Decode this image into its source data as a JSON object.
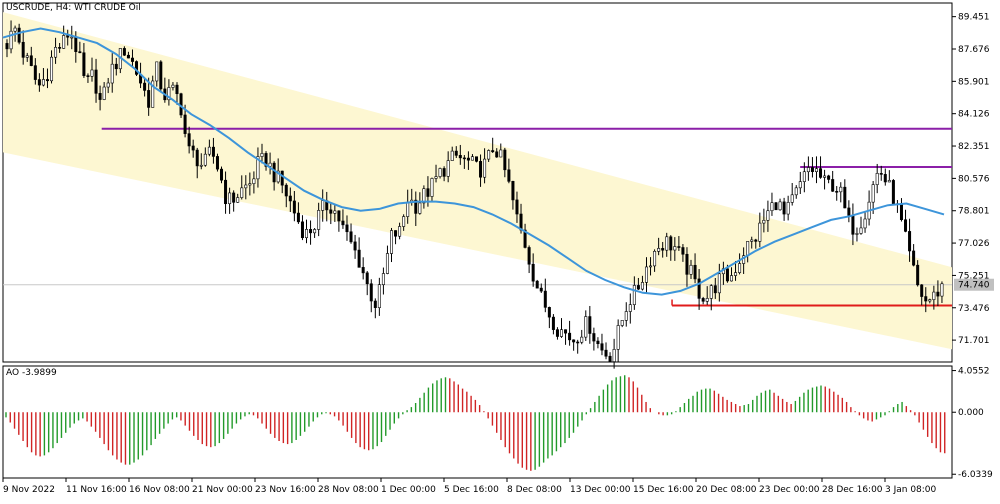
{
  "header": {
    "title": "USCRUDE, H4:  WTI CRUDE Oil"
  },
  "indicator": {
    "label": "AO -3.9899"
  },
  "colors": {
    "background": "#ffffff",
    "channel_fill": "#fdf7d2",
    "ma_line": "#3d95da",
    "resistance": "#8b1fa8",
    "support": "#e01b1b",
    "ao_up": "#229a2a",
    "ao_down": "#d02424",
    "candle": "#000000",
    "grid": "#c8c8c8"
  },
  "chart_data": [
    {
      "type": "candlestick",
      "title": "USCRUDE, H4:  WTI CRUDE Oil",
      "timeframe": "H4",
      "ylim": [
        70.5,
        90.2
      ],
      "yticks": [
        "89.451",
        "87.676",
        "85.901",
        "84.126",
        "82.351",
        "80.576",
        "78.801",
        "77.026",
        "75.251",
        "73.476",
        "71.701"
      ],
      "current_price": "74.740",
      "xticks": [
        "9 Nov 2022",
        "11 Nov 16:00",
        "16 Nov 08:00",
        "21 Nov 00:00",
        "23 Nov 16:00",
        "28 Nov 08:00",
        "1 Dec 00:00",
        "5 Dec 16:00",
        "8 Dec 08:00",
        "13 Dec 00:00",
        "15 Dec 16:00",
        "20 Dec 08:00",
        "23 Dec 00:00",
        "28 Dec 16:00",
        "3 Jan 08:00"
      ],
      "close_path": [
        88.0,
        88.8,
        87.5,
        86.6,
        85.6,
        86.2,
        87.6,
        87.9,
        88.7,
        87.5,
        85.6,
        86.3,
        84.5,
        86.3,
        87.0,
        87.7,
        86.9,
        85.9,
        84.8,
        86.6,
        85.1,
        85.4,
        84.9,
        82.1,
        81.8,
        81.2,
        82.1,
        81.0,
        79.3,
        79.5,
        80.0,
        80.3,
        81.4,
        81.6,
        80.8,
        80.2,
        79.3,
        78.3,
        77.5,
        77.9,
        78.8,
        79.2,
        78.6,
        77.6,
        76.8,
        75.9,
        74.5,
        73.6,
        75.4,
        77.5,
        77.6,
        79.5,
        79.1,
        79.6,
        80.1,
        80.8,
        81.3,
        81.8,
        81.6,
        81.4,
        81.0,
        81.4,
        82.4,
        81.5,
        80.0,
        78.2,
        76.9,
        75.3,
        74.0,
        73.2,
        72.4,
        72.1,
        71.7,
        72.2,
        72.7,
        71.6,
        71.0,
        70.9,
        72.4,
        73.8,
        74.3,
        75.3,
        76.3,
        76.9,
        77.1,
        76.8,
        76.0,
        75.4,
        74.4,
        74.0,
        74.6,
        75.2,
        75.1,
        75.9,
        76.8,
        77.1,
        78.0,
        78.8,
        79.4,
        78.4,
        79.4,
        80.2,
        81.1,
        81.0,
        80.3,
        80.3,
        79.9,
        78.2,
        77.8,
        78.5,
        79.9,
        81.1,
        80.3,
        79.4,
        77.8,
        76.1,
        74.5,
        73.8,
        74.1,
        74.7
      ],
      "channel": {
        "upper": {
          "from": [
            0,
            89.7
          ],
          "to": [
            1,
            75.7
          ]
        },
        "lower": {
          "from": [
            0,
            82.0
          ],
          "to": [
            1,
            71.2
          ]
        }
      },
      "moving_average": [
        88.3,
        88.6,
        88.8,
        88.6,
        88.3,
        88.0,
        87.4,
        86.6,
        85.6,
        84.9,
        84.1,
        83.5,
        82.8,
        82.0,
        81.3,
        80.6,
        79.9,
        79.4,
        79.0,
        78.8,
        78.9,
        79.2,
        79.3,
        79.3,
        79.2,
        79.0,
        78.6,
        78.1,
        77.5,
        76.9,
        76.2,
        75.5,
        75.0,
        74.6,
        74.3,
        74.2,
        74.4,
        74.8,
        75.4,
        76.0,
        76.6,
        77.1,
        77.5,
        77.9,
        78.3,
        78.5,
        78.8,
        79.1,
        79.2,
        78.9,
        78.6
      ],
      "resistance_lines": [
        {
          "price": 83.3,
          "from": 0.104,
          "to": 1.0
        },
        {
          "price": 81.2,
          "from": 0.84,
          "to": 1.0
        }
      ],
      "support_lines": [
        {
          "price": 73.6,
          "from": 0.705,
          "to": 1.0
        }
      ]
    },
    {
      "type": "histogram",
      "title": "AO",
      "value": "-3.9899",
      "ylim": [
        -6.4,
        4.5
      ],
      "yticks": [
        "4.0552",
        "0.000",
        "-6.0339"
      ],
      "values": [
        -0.5,
        -1.0,
        -1.6,
        -2.2,
        -2.8,
        -3.4,
        -3.9,
        -4.2,
        -4.3,
        -4.2,
        -3.9,
        -3.5,
        -3.0,
        -2.5,
        -2.0,
        -1.5,
        -1.1,
        -0.8,
        -0.6,
        -0.9,
        -1.4,
        -1.9,
        -2.5,
        -3.1,
        -3.7,
        -4.2,
        -4.6,
        -4.9,
        -5.1,
        -5.1,
        -4.9,
        -4.6,
        -4.2,
        -3.7,
        -3.2,
        -2.6,
        -2.1,
        -1.6,
        -1.1,
        -0.7,
        -0.5,
        -0.8,
        -1.3,
        -1.8,
        -2.3,
        -2.7,
        -3.1,
        -3.3,
        -3.4,
        -3.3,
        -3.0,
        -2.6,
        -2.1,
        -1.6,
        -1.1,
        -0.7,
        -0.4,
        -0.2,
        -0.3,
        -0.6,
        -1.1,
        -1.6,
        -2.1,
        -2.5,
        -2.8,
        -3.0,
        -3.1,
        -3.0,
        -2.7,
        -2.3,
        -1.9,
        -1.4,
        -0.9,
        -0.5,
        -0.2,
        -0.1,
        -0.2,
        -0.4,
        -0.8,
        -1.3,
        -1.9,
        -2.5,
        -3.0,
        -3.4,
        -3.6,
        -3.7,
        -3.6,
        -3.3,
        -2.9,
        -2.3,
        -1.7,
        -1.1,
        -0.6,
        -0.2,
        0.2,
        0.5,
        0.9,
        1.4,
        1.9,
        2.4,
        2.8,
        3.1,
        3.3,
        3.4,
        3.3,
        3.0,
        2.7,
        2.3,
        2.0,
        1.6,
        1.2,
        0.7,
        0.1,
        -0.6,
        -1.3,
        -2.0,
        -2.7,
        -3.4,
        -4.0,
        -4.5,
        -5.0,
        -5.4,
        -5.6,
        -5.7,
        -5.6,
        -5.3,
        -4.9,
        -4.5,
        -4.2,
        -3.8,
        -3.4,
        -3.0,
        -2.5,
        -2.0,
        -1.4,
        -0.8,
        -0.2,
        0.4,
        1.0,
        1.6,
        2.2,
        2.7,
        3.1,
        3.4,
        3.5,
        3.6,
        3.4,
        3.0,
        2.4,
        1.7,
        1.0,
        0.4,
        0.0,
        -0.2,
        -0.3,
        -0.3,
        -0.2,
        0.1,
        0.5,
        0.9,
        1.3,
        1.6,
        2.0,
        2.2,
        2.3,
        2.3,
        2.1,
        1.8,
        1.5,
        1.2,
        1.0,
        0.8,
        0.6,
        0.7,
        0.8,
        1.2,
        1.6,
        1.9,
        2.1,
        2.2,
        1.9,
        1.6,
        1.3,
        1.0,
        0.8,
        1.1,
        1.5,
        1.9,
        2.2,
        2.4,
        2.5,
        2.6,
        2.5,
        2.3,
        2.0,
        1.7,
        1.4,
        1.0,
        0.5,
        0.1,
        -0.3,
        -0.6,
        -0.8,
        -0.9,
        -0.7,
        -0.5,
        -0.3,
        0.1,
        0.5,
        0.8,
        1.0,
        0.6,
        0.2,
        -0.3,
        -1.0,
        -1.7,
        -2.4,
        -3.0,
        -3.5,
        -3.9,
        -3.99
      ]
    }
  ]
}
